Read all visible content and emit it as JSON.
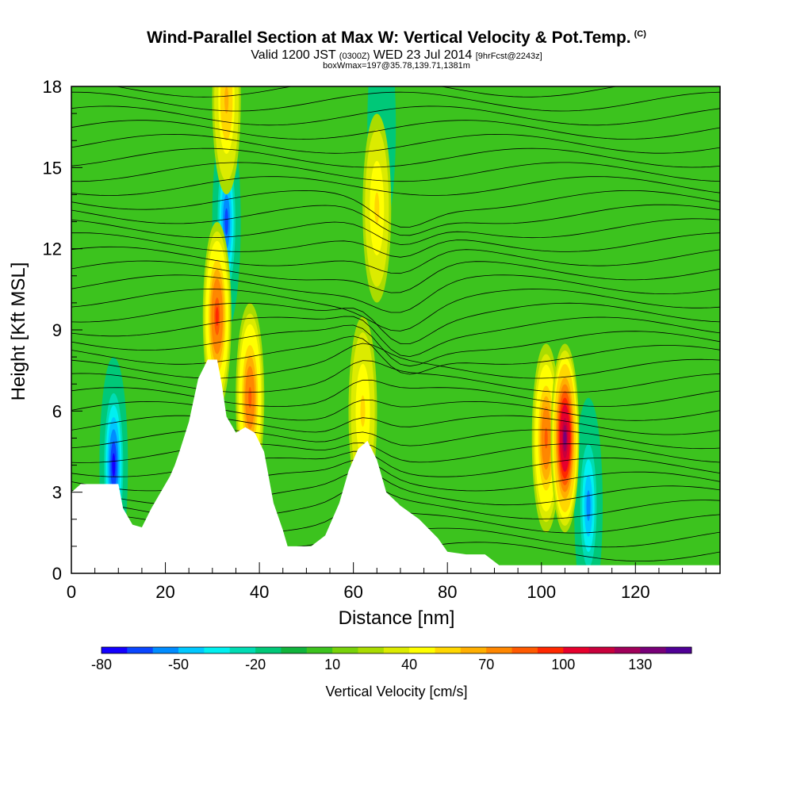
{
  "header": {
    "title": "Wind-Parallel Section at Max W: Vertical Velocity & Pot.Temp.",
    "copyright": "(C)",
    "subtitle_main": "Valid 1200 JST",
    "subtitle_utc": "(0300Z)",
    "subtitle_date": "WED 23 Jul 2014",
    "subtitle_fcst": "[9hrFcst@2243z]",
    "subtitle_box": "boxWmax=197@35.78,139.71,1381m"
  },
  "chart_data": {
    "type": "heatmap",
    "xlabel": "Distance [nm]",
    "ylabel": "Height [Kft MSL]",
    "xlim": [
      0,
      138
    ],
    "ylim": [
      0,
      18
    ],
    "x_ticks": [
      0,
      20,
      40,
      60,
      80,
      100,
      120
    ],
    "y_ticks": [
      0,
      3,
      6,
      9,
      12,
      15,
      18
    ],
    "colorbar": {
      "label": "Vertical Velocity [cm/s]",
      "tick_labels": [
        -80,
        -50,
        -20,
        10,
        40,
        70,
        100,
        130
      ],
      "colors": [
        "#1400ff",
        "#0a46ff",
        "#008cff",
        "#00c8ff",
        "#00f0f0",
        "#00dcb4",
        "#00c878",
        "#10b43c",
        "#3cc31e",
        "#78d20a",
        "#aadc00",
        "#dceb00",
        "#ffff00",
        "#ffd700",
        "#ffaf00",
        "#ff8700",
        "#ff5a00",
        "#ff2800",
        "#e6002d",
        "#c8003c",
        "#a0005a",
        "#780078",
        "#500096"
      ]
    },
    "terrain_kft": [
      [
        0,
        3.0
      ],
      [
        2,
        3.3
      ],
      [
        10,
        3.3
      ],
      [
        11,
        2.4
      ],
      [
        13,
        1.8
      ],
      [
        15,
        1.7
      ],
      [
        17,
        2.4
      ],
      [
        19,
        3.0
      ],
      [
        21,
        3.6
      ],
      [
        22,
        4.0
      ],
      [
        23,
        4.5
      ],
      [
        25,
        5.6
      ],
      [
        27,
        7.2
      ],
      [
        29,
        7.9
      ],
      [
        31,
        7.9
      ],
      [
        32,
        7.0
      ],
      [
        33,
        5.8
      ],
      [
        35,
        5.2
      ],
      [
        37,
        5.4
      ],
      [
        39,
        5.2
      ],
      [
        41,
        4.5
      ],
      [
        43,
        2.6
      ],
      [
        45,
        1.6
      ],
      [
        46,
        1.0
      ],
      [
        51,
        1.0
      ],
      [
        54,
        1.4
      ],
      [
        57,
        2.6
      ],
      [
        59,
        3.8
      ],
      [
        61,
        4.6
      ],
      [
        63,
        4.9
      ],
      [
        65,
        4.2
      ],
      [
        67,
        3.0
      ],
      [
        70,
        2.5
      ],
      [
        74,
        2.0
      ],
      [
        78,
        1.3
      ],
      [
        80,
        0.8
      ],
      [
        84,
        0.7
      ],
      [
        88,
        0.7
      ],
      [
        91,
        0.3
      ],
      [
        138,
        0.3
      ]
    ],
    "updraft_peaks": [
      {
        "x": 31,
        "z": 9.5,
        "w": 90
      },
      {
        "x": 33,
        "z": 17.5,
        "w": 60
      },
      {
        "x": 38,
        "z": 6.5,
        "w": 80
      },
      {
        "x": 62,
        "z": 6.0,
        "w": 50
      },
      {
        "x": 65,
        "z": 13.5,
        "w": 50
      },
      {
        "x": 101,
        "z": 5.0,
        "w": 80
      },
      {
        "x": 105,
        "z": 5.0,
        "w": 130
      }
    ],
    "downdraft_peaks": [
      {
        "x": 9,
        "z": 4.0,
        "w": -80
      },
      {
        "x": 33,
        "z": 13.0,
        "w": -70
      },
      {
        "x": 66,
        "z": 16.5,
        "w": -20
      },
      {
        "x": 110,
        "z": 2.5,
        "w": -60
      }
    ]
  }
}
